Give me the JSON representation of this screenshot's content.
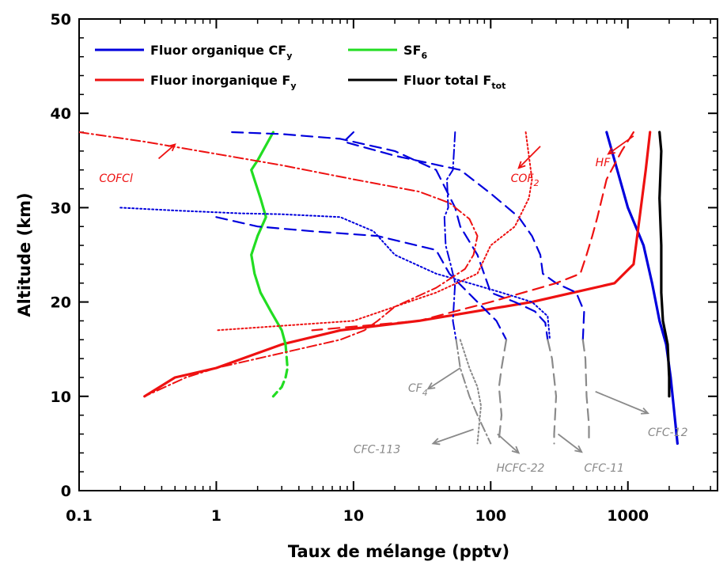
{
  "chart_data": {
    "type": "line",
    "xlabel": "Taux de mélange (pptv)",
    "ylabel": "Altitude (km)",
    "xscale": "log",
    "xlim": [
      0.1,
      4500
    ],
    "ylim": [
      0,
      50
    ],
    "grid": false,
    "legend_placement": "top-left",
    "x_ticks": [
      {
        "value": 0.1,
        "label": "0.1"
      },
      {
        "value": 1,
        "label": "1"
      },
      {
        "value": 10,
        "label": "10"
      },
      {
        "value": 100,
        "label": "100"
      },
      {
        "value": 1000,
        "label": "1000"
      }
    ],
    "y_ticks": [
      {
        "value": 0,
        "label": "0"
      },
      {
        "value": 10,
        "label": "10"
      },
      {
        "value": 20,
        "label": "20"
      },
      {
        "value": 30,
        "label": "30"
      },
      {
        "value": 40,
        "label": "40"
      },
      {
        "value": 50,
        "label": "50"
      }
    ],
    "legend": [
      {
        "main": "Fluor organique CF",
        "sub": "y",
        "color": "#0000dd"
      },
      {
        "main": "SF",
        "sub": "6",
        "color": "#22dd22"
      },
      {
        "main": "Fluor inorganique F",
        "sub": "y",
        "color": "#ee1111"
      },
      {
        "main": "Fluor total F",
        "sub": "tot",
        "color": "#000000"
      }
    ],
    "annotations": [
      {
        "text": "COFCl",
        "sub": "",
        "color": "#ee1111",
        "x": 0.14,
        "y": 32.7,
        "arrow_to": [
          0.5,
          36.7
        ],
        "arrow_from": [
          0.38,
          35.2
        ]
      },
      {
        "text": "COF",
        "sub": "2",
        "color": "#ee1111",
        "x": 140,
        "y": 32.7,
        "arrow_to": [
          160,
          34.2
        ],
        "arrow_from": [
          230,
          36.5
        ]
      },
      {
        "text": "HF",
        "sub": "",
        "color": "#ee1111",
        "x": 580,
        "y": 34.4,
        "arrow_to": [
          720,
          35.7
        ],
        "arrow_from": [
          1100,
          37.6
        ]
      },
      {
        "text": "CF",
        "sub": "4",
        "color": "#8a8a8a",
        "x": 25,
        "y": 10.5,
        "arrow_to": [
          35,
          10.8
        ],
        "arrow_from": [
          60,
          13.0
        ]
      },
      {
        "text": "CFC-113",
        "sub": "",
        "color": "#8a8a8a",
        "x": 10,
        "y": 4.0,
        "arrow_to": [
          38,
          5.0
        ],
        "arrow_from": [
          75,
          6.5
        ]
      },
      {
        "text": "HCFC-22",
        "sub": "",
        "color": "#8a8a8a",
        "x": 110,
        "y": 2.0,
        "arrow_to": [
          160,
          4.0
        ],
        "arrow_from": [
          112,
          6.0
        ]
      },
      {
        "text": "CFC-11",
        "sub": "",
        "color": "#8a8a8a",
        "x": 480,
        "y": 2.0,
        "arrow_to": [
          460,
          4.1
        ],
        "arrow_from": [
          310,
          6.0
        ]
      },
      {
        "text": "CFC-12",
        "sub": "",
        "color": "#8a8a8a",
        "x": 1400,
        "y": 5.8,
        "arrow_to": [
          1400,
          8.2
        ],
        "arrow_from": [
          580,
          10.5
        ]
      }
    ],
    "series": [
      {
        "name": "Fluor organique CF",
        "color": "#0000dd",
        "width": 3.2,
        "dash": "",
        "points": [
          [
            700,
            38
          ],
          [
            1000,
            30
          ],
          [
            1300,
            26
          ],
          [
            1500,
            22
          ],
          [
            1700,
            18
          ],
          [
            1900,
            15.5
          ],
          [
            2050,
            12
          ],
          [
            2300,
            5
          ]
        ]
      },
      {
        "name": "Fluor inorganique F",
        "color": "#ee1111",
        "width": 3.2,
        "dash": "",
        "points": [
          [
            1450,
            38
          ],
          [
            1350,
            34
          ],
          [
            1100,
            24
          ],
          [
            800,
            22
          ],
          [
            200,
            20
          ],
          [
            30,
            18
          ],
          [
            8,
            17
          ],
          [
            3,
            15.5
          ],
          [
            1,
            13
          ],
          [
            0.5,
            12
          ],
          [
            0.3,
            10
          ]
        ]
      },
      {
        "name": "Fluor total F",
        "color": "#000000",
        "width": 3.2,
        "dash": "",
        "points": [
          [
            1700,
            38
          ],
          [
            1750,
            36
          ],
          [
            1700,
            31
          ],
          [
            1750,
            26
          ],
          [
            1750,
            21
          ],
          [
            1800,
            18
          ],
          [
            1950,
            15.5
          ],
          [
            2000,
            12
          ],
          [
            2000,
            10
          ]
        ]
      },
      {
        "name": "SF",
        "color": "#22dd22",
        "width": 3.2,
        "dash": "",
        "points": [
          [
            2.6,
            38
          ],
          [
            2.0,
            35
          ],
          [
            1.8,
            34
          ],
          [
            2.1,
            31
          ],
          [
            2.3,
            29
          ],
          [
            2.0,
            27
          ],
          [
            1.8,
            25
          ],
          [
            1.9,
            23
          ],
          [
            2.1,
            21
          ],
          [
            2.5,
            19
          ],
          [
            3.0,
            17
          ],
          [
            3.2,
            15.5
          ]
        ]
      },
      {
        "name": "",
        "color": "#22dd22",
        "width": 3.2,
        "dash": "10,6",
        "points": [
          [
            3.2,
            15.5
          ],
          [
            3.3,
            13
          ],
          [
            3.2,
            12
          ],
          [
            3.0,
            11
          ],
          [
            2.6,
            10
          ]
        ]
      },
      {
        "name": "",
        "color": "#0000dd",
        "width": 2.2,
        "dash": "14,8",
        "points": [
          [
            1.3,
            38
          ],
          [
            3,
            37.8
          ],
          [
            8,
            37.3
          ],
          [
            20,
            36
          ],
          [
            40,
            34
          ],
          [
            55,
            30
          ],
          [
            60,
            28
          ],
          [
            80,
            25
          ],
          [
            100,
            21
          ],
          [
            150,
            20
          ],
          [
            210,
            19
          ],
          [
            250,
            17.8
          ],
          [
            260,
            16
          ]
        ]
      },
      {
        "name": "",
        "color": "#0000dd",
        "width": 2.2,
        "dash": "14,8",
        "points": [
          [
            10,
            38
          ],
          [
            8.5,
            37
          ],
          [
            20,
            35.5
          ],
          [
            60,
            34
          ],
          [
            100,
            31.5
          ],
          [
            160,
            29
          ],
          [
            200,
            27
          ],
          [
            230,
            25
          ],
          [
            240,
            23
          ],
          [
            300,
            22
          ],
          [
            420,
            21
          ],
          [
            480,
            19
          ],
          [
            470,
            16
          ]
        ]
      },
      {
        "name": "",
        "color": "#0000dd",
        "width": 2.2,
        "dash": "14,8",
        "points": [
          [
            1,
            29
          ],
          [
            2,
            28
          ],
          [
            5,
            27.5
          ],
          [
            15,
            27
          ],
          [
            40,
            25.5
          ],
          [
            50,
            23
          ],
          [
            80,
            20
          ],
          [
            110,
            18
          ],
          [
            130,
            16
          ]
        ]
      },
      {
        "name": "",
        "color": "#0000dd",
        "width": 2.0,
        "dash": "2,3",
        "points": [
          [
            0.2,
            30
          ],
          [
            0.5,
            29.7
          ],
          [
            1.5,
            29.4
          ],
          [
            3,
            29.3
          ],
          [
            8,
            29
          ],
          [
            14,
            27.5
          ],
          [
            20,
            25
          ],
          [
            40,
            23
          ],
          [
            70,
            22
          ],
          [
            120,
            21
          ],
          [
            200,
            20
          ],
          [
            260,
            18.5
          ],
          [
            270,
            16
          ]
        ]
      },
      {
        "name": "",
        "color": "#0000dd",
        "width": 2.0,
        "dash": "12,4,2,4",
        "points": [
          [
            55,
            38
          ],
          [
            53,
            34
          ],
          [
            48,
            33
          ],
          [
            49,
            30
          ],
          [
            46,
            29
          ],
          [
            47,
            26
          ],
          [
            51,
            24
          ],
          [
            55,
            22
          ],
          [
            53,
            18
          ],
          [
            56,
            16
          ]
        ]
      },
      {
        "name": "",
        "color": "#8a8a8a",
        "width": 2.0,
        "dash": "12,4,2,4",
        "points": [
          [
            56,
            16
          ],
          [
            60,
            13
          ],
          [
            70,
            10
          ],
          [
            80,
            8
          ],
          [
            100,
            5
          ]
        ]
      },
      {
        "name": "",
        "color": "#8a8a8a",
        "width": 2.0,
        "dash": "2,3",
        "points": [
          [
            60,
            16
          ],
          [
            70,
            13
          ],
          [
            80,
            11
          ],
          [
            85,
            9
          ],
          [
            80,
            5
          ]
        ]
      },
      {
        "name": "",
        "color": "#8a8a8a",
        "width": 2.2,
        "dash": "14,8",
        "points": [
          [
            130,
            16
          ],
          [
            120,
            13
          ],
          [
            115,
            11
          ],
          [
            120,
            8
          ],
          [
            115,
            5.5
          ]
        ]
      },
      {
        "name": "",
        "color": "#8a8a8a",
        "width": 2.2,
        "dash": "14,8",
        "points": [
          [
            260,
            16
          ],
          [
            280,
            14
          ],
          [
            300,
            10
          ],
          [
            290,
            6
          ],
          [
            290,
            5
          ]
        ]
      },
      {
        "name": "",
        "color": "#8a8a8a",
        "width": 2.2,
        "dash": "14,8",
        "points": [
          [
            470,
            16
          ],
          [
            490,
            14
          ],
          [
            500,
            10
          ],
          [
            520,
            7
          ],
          [
            520,
            5
          ]
        ]
      },
      {
        "name": "",
        "color": "#ee1111",
        "width": 2.0,
        "dash": "12,4,2,4",
        "points": [
          [
            0.1,
            38
          ],
          [
            0.3,
            37
          ],
          [
            1,
            35.7
          ],
          [
            3,
            34.5
          ],
          [
            10,
            33
          ],
          [
            30,
            31.7
          ],
          [
            50,
            30.5
          ],
          [
            70,
            28.8
          ],
          [
            80,
            27
          ],
          [
            75,
            25
          ],
          [
            65,
            23.5
          ],
          [
            40,
            21.5
          ],
          [
            20,
            19.5
          ],
          [
            15,
            18
          ],
          [
            12,
            17
          ],
          [
            8,
            16
          ],
          [
            4,
            15
          ],
          [
            1,
            13
          ],
          [
            0.6,
            12
          ],
          [
            0.3,
            10
          ]
        ]
      },
      {
        "name": "",
        "color": "#ee1111",
        "width": 2.0,
        "dash": "2,3",
        "points": [
          [
            180,
            38
          ],
          [
            200,
            33
          ],
          [
            190,
            31
          ],
          [
            150,
            28
          ],
          [
            100,
            26
          ],
          [
            80,
            23
          ],
          [
            40,
            21
          ],
          [
            10,
            18
          ],
          [
            4,
            17.6
          ],
          [
            1,
            17
          ]
        ]
      },
      {
        "name": "",
        "color": "#ee1111",
        "width": 2.2,
        "dash": "14,8",
        "points": [
          [
            1100,
            38
          ],
          [
            900,
            36
          ],
          [
            700,
            33
          ],
          [
            600,
            29
          ],
          [
            550,
            27
          ],
          [
            500,
            25
          ],
          [
            450,
            23
          ],
          [
            300,
            22
          ],
          [
            100,
            20
          ],
          [
            30,
            18
          ],
          [
            5,
            17
          ]
        ]
      }
    ]
  }
}
